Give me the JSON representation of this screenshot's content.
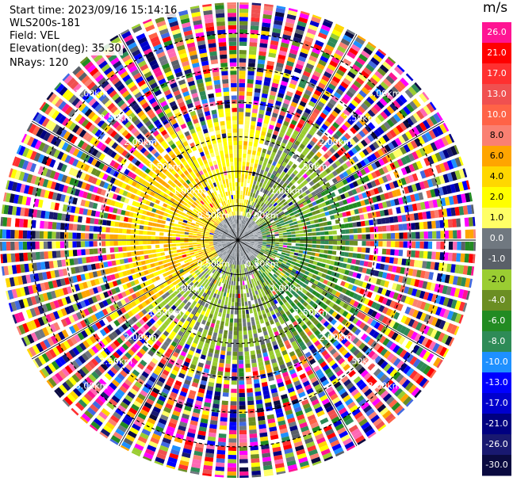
{
  "info": {
    "start_time": "Start time: 2023/09/16 15:14:16",
    "instrument": "WLS200s-181",
    "field": "Field: VEL",
    "elevation": "Elevation(deg): 35.30",
    "nrays": "NRays: 120"
  },
  "chart_data": {
    "type": "heatmap",
    "projection": "polar (PPI)",
    "unit": "m/s",
    "nrays": 120,
    "range_rings_km": [
      0.5,
      1.0,
      1.5,
      2.0,
      2.5,
      3.0
    ],
    "ring_labels": [
      "0.50km",
      "1.00km",
      "1.50km",
      "2.00km",
      "2.50km",
      "3.00km"
    ],
    "range_max_km": 3.45,
    "colorbar": {
      "ticks": [
        "26.0",
        "21.0",
        "17.0",
        "13.0",
        "10.0",
        "8.0",
        "6.0",
        "4.0",
        "2.0",
        "1.0",
        "0.0",
        "-1.0",
        "-2.0",
        "-4.0",
        "-6.0",
        "-8.0",
        "-10.0",
        "-13.0",
        "-17.0",
        "-21.0",
        "-26.0",
        "-30.0"
      ],
      "colors": [
        "#ff1493",
        "#ff0000",
        "#ff3030",
        "#f05050",
        "#ff6347",
        "#fa8072",
        "#ffa500",
        "#ffd700",
        "#ffff00",
        "#ffff66",
        "#707880",
        "#5a6068",
        "#9acd32",
        "#6b8e23",
        "#228b22",
        "#2e8b57",
        "#1e90ff",
        "#0000ff",
        "#0000cd",
        "#000080",
        "#191970",
        "#0a0a40"
      ]
    }
  }
}
